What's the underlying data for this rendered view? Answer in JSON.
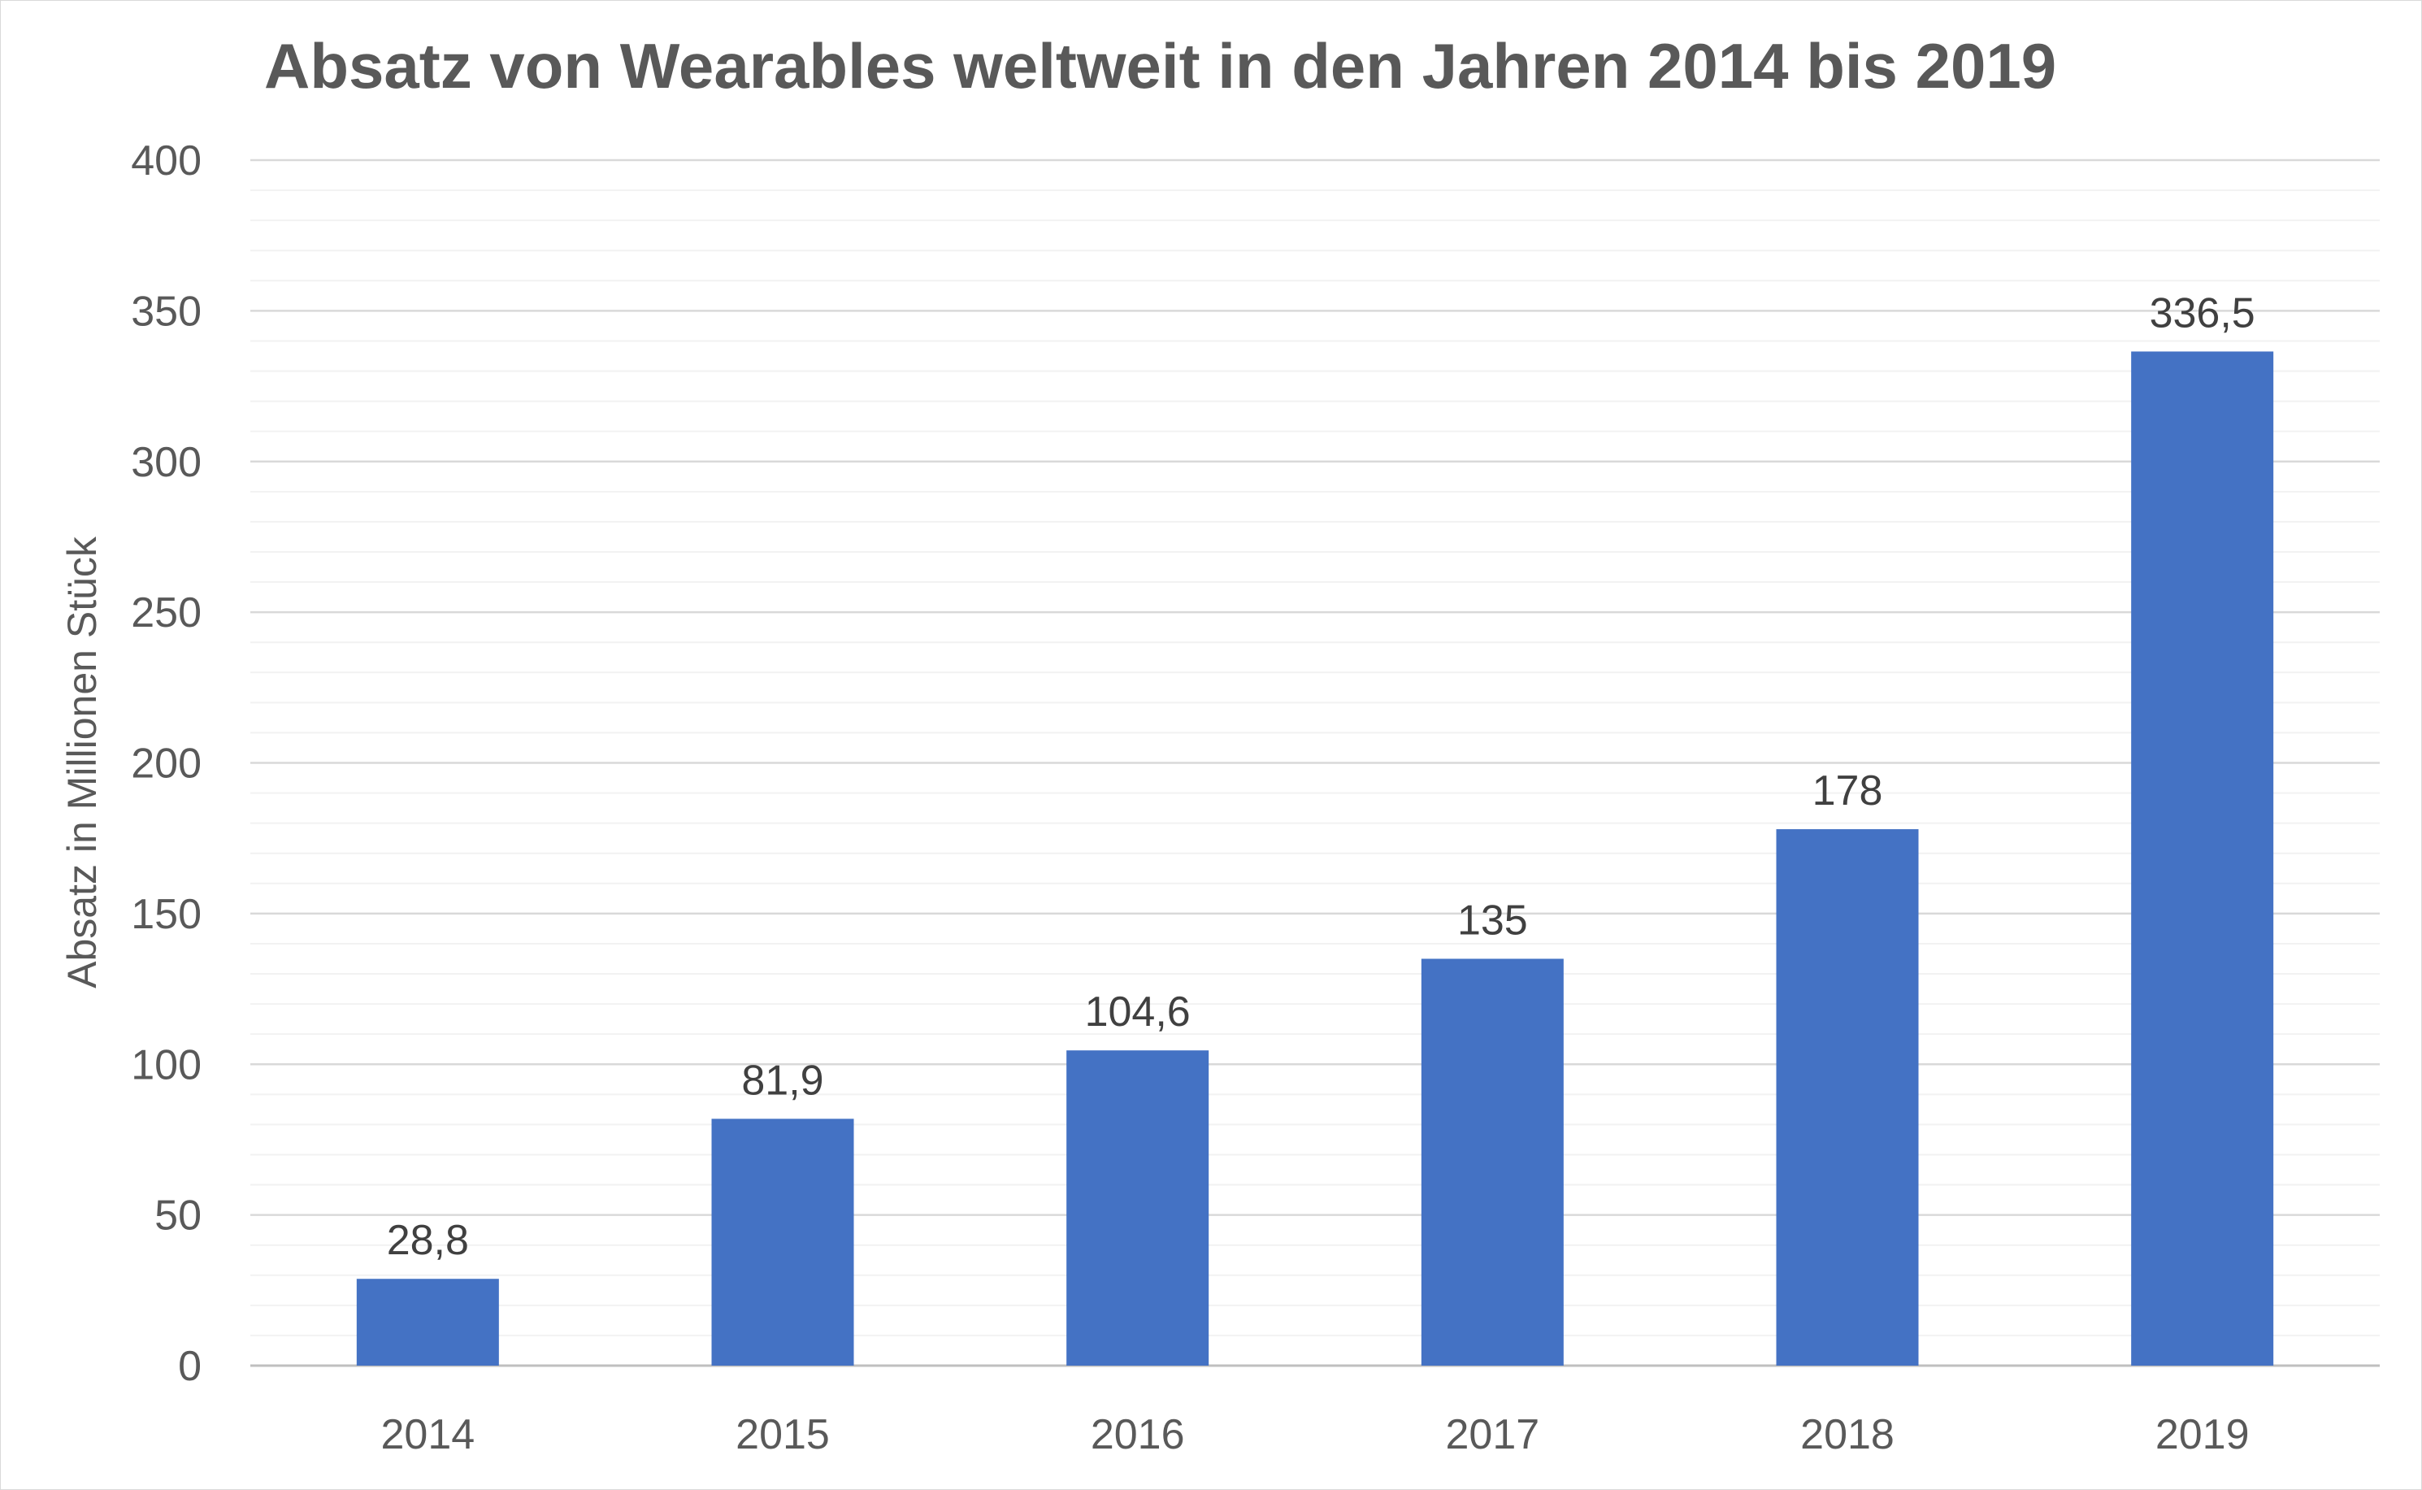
{
  "chart_data": {
    "type": "bar",
    "title": "Absatz von Wearables weltweit in den Jahren 2014 bis 2019",
    "xlabel": "",
    "ylabel": "Absatz in Millionen Stück",
    "categories": [
      "2014",
      "2015",
      "2016",
      "2017",
      "2018",
      "2019"
    ],
    "values": [
      28.8,
      81.9,
      104.6,
      135,
      178,
      336.5
    ],
    "data_labels": [
      "28,8",
      "81,9",
      "104,6",
      "135",
      "178",
      "336,5"
    ],
    "ylim": [
      0,
      400
    ],
    "yticks": [
      0,
      50,
      100,
      150,
      200,
      250,
      300,
      350,
      400
    ],
    "grid": true,
    "minor_grid": true,
    "legend": "none",
    "colors": {
      "bar": "#4472C4",
      "major_grid": "#d9d9d9",
      "minor_grid": "#f2f2f2",
      "text": "#595959",
      "label_text": "#404040"
    }
  }
}
